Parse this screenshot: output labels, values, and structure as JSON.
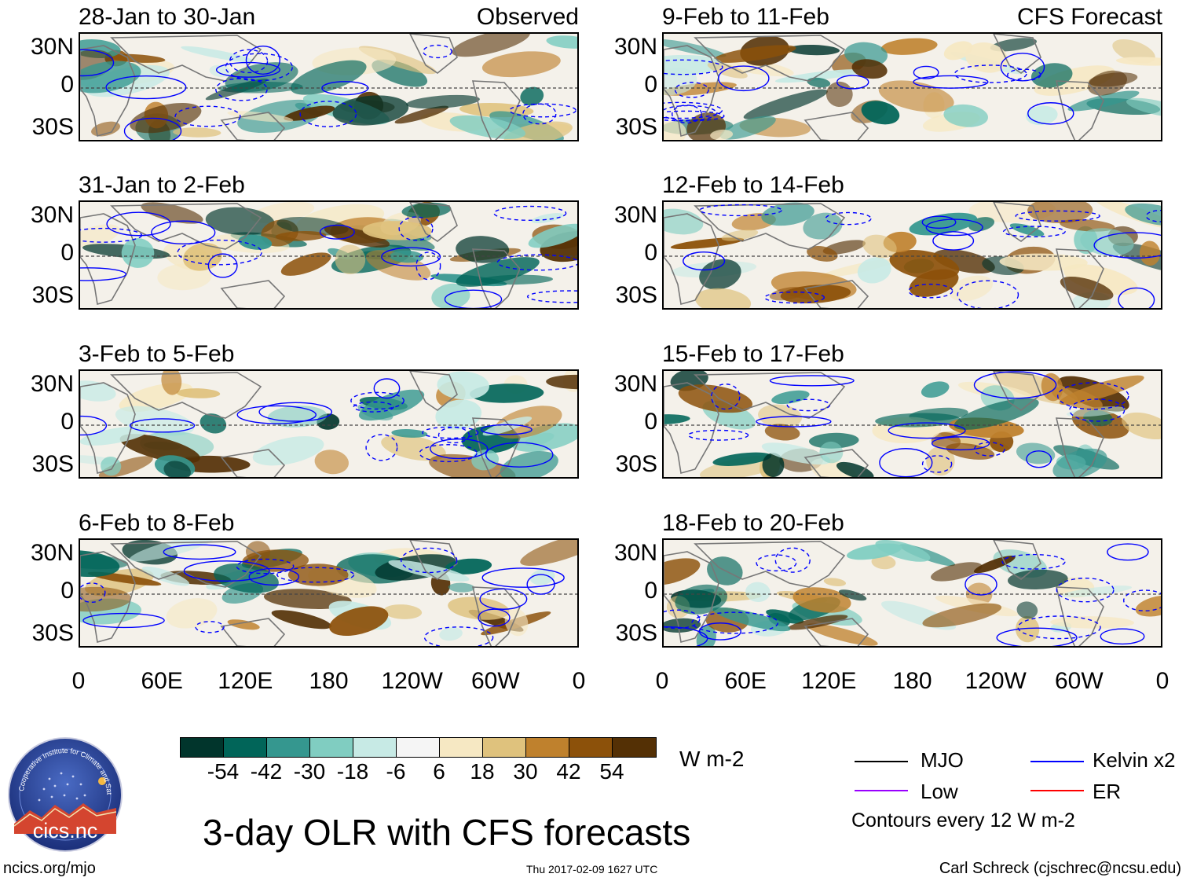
{
  "panels": [
    {
      "title": "28-Jan to 30-Jan",
      "label": "Observed"
    },
    {
      "title": "31-Jan to 2-Feb",
      "label": ""
    },
    {
      "title": "3-Feb to 5-Feb",
      "label": ""
    },
    {
      "title": "6-Feb to 8-Feb",
      "label": ""
    },
    {
      "title": "9-Feb to 11-Feb",
      "label": "CFS Forecast"
    },
    {
      "title": "12-Feb to 14-Feb",
      "label": ""
    },
    {
      "title": "15-Feb to 17-Feb",
      "label": ""
    },
    {
      "title": "18-Feb to 20-Feb",
      "label": ""
    }
  ],
  "lat_labels": [
    "30N",
    "0",
    "30S"
  ],
  "lon_labels": [
    "0",
    "60E",
    "120E",
    "180",
    "120W",
    "60W",
    "0"
  ],
  "colorbar": {
    "colors": [
      "#01352c",
      "#016559",
      "#35978f",
      "#80cdc1",
      "#c7eae5",
      "#f5f5f5",
      "#f6e8c3",
      "#dfc27d",
      "#bf812d",
      "#8c510a",
      "#543005"
    ],
    "ticks": [
      "-54",
      "-42",
      "-30",
      "-18",
      "-6",
      "6",
      "18",
      "30",
      "42",
      "54"
    ],
    "units": "W m-2"
  },
  "title": "3-day OLR with CFS forecasts",
  "legend": {
    "items": [
      {
        "label": "MJO",
        "color": "#000000"
      },
      {
        "label": "Kelvin x2",
        "color": "#0000ff"
      },
      {
        "label": "Low",
        "color": "#9900ff"
      },
      {
        "label": "ER",
        "color": "#ff0000"
      }
    ],
    "note": "Contours every 12 W m-2"
  },
  "logo": {
    "text": "cics.nc",
    "arc_text": "Cooperative Institute for Climate and Satellites"
  },
  "footer": {
    "left": "ncics.org/mjo",
    "center": "Thu 2017-02-09 1627 UTC",
    "right": "Carl Schreck (cjschrec@ncsu.edu)"
  }
}
